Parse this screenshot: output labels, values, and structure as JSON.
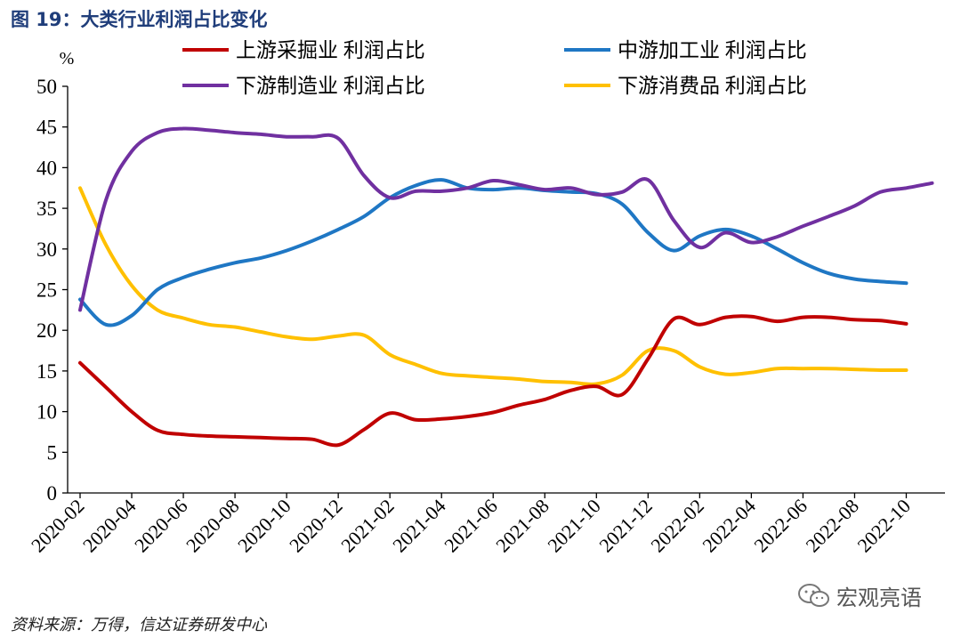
{
  "figure": {
    "title": "图 19：大类行业利润占比变化",
    "source": "资料来源：万得，信达证券研发中心",
    "watermark": "宏观亮语"
  },
  "chart_data": {
    "type": "line",
    "title": "大类行业利润占比变化",
    "ylabel": "%",
    "xlabel": "",
    "ylim": [
      0,
      50
    ],
    "yticks": [
      0,
      5,
      10,
      15,
      20,
      25,
      30,
      35,
      40,
      45,
      50
    ],
    "xlim": [
      0,
      33.5
    ],
    "xticks": [
      {
        "label": "2020-02",
        "x": 0
      },
      {
        "label": "2020-04",
        "x": 2
      },
      {
        "label": "2020-06",
        "x": 4
      },
      {
        "label": "2020-08",
        "x": 6
      },
      {
        "label": "2020-10",
        "x": 8
      },
      {
        "label": "2020-12",
        "x": 10
      },
      {
        "label": "2021-02",
        "x": 12
      },
      {
        "label": "2021-04",
        "x": 14
      },
      {
        "label": "2021-06",
        "x": 16
      },
      {
        "label": "2021-08",
        "x": 18
      },
      {
        "label": "2021-10",
        "x": 20
      },
      {
        "label": "2021-12",
        "x": 22
      },
      {
        "label": "2022-02",
        "x": 24
      },
      {
        "label": "2022-04",
        "x": 26
      },
      {
        "label": "2022-06",
        "x": 28
      },
      {
        "label": "2022-08",
        "x": 30
      },
      {
        "label": "2022-10",
        "x": 32
      }
    ],
    "series": [
      {
        "name": "上游采掘业 利润占比",
        "color": "#c00000",
        "points": [
          [
            0,
            16
          ],
          [
            1,
            13
          ],
          [
            2,
            10
          ],
          [
            3,
            7.7
          ],
          [
            4,
            7.2
          ],
          [
            5,
            7.0
          ],
          [
            6,
            6.9
          ],
          [
            7,
            6.8
          ],
          [
            8,
            6.7
          ],
          [
            9,
            6.6
          ],
          [
            10,
            5.9
          ],
          [
            11,
            7.8
          ],
          [
            12,
            9.8
          ],
          [
            13,
            9.0
          ],
          [
            14,
            9.1
          ],
          [
            15,
            9.4
          ],
          [
            16,
            9.9
          ],
          [
            17,
            10.8
          ],
          [
            18,
            11.5
          ],
          [
            19,
            12.6
          ],
          [
            20,
            13.1
          ],
          [
            21,
            12.1
          ],
          [
            22,
            16.5
          ],
          [
            23,
            21.4
          ],
          [
            24,
            20.7
          ],
          [
            25,
            21.6
          ],
          [
            26,
            21.7
          ],
          [
            27,
            21.1
          ],
          [
            28,
            21.6
          ],
          [
            29,
            21.6
          ],
          [
            30,
            21.3
          ],
          [
            31,
            21.2
          ],
          [
            32,
            20.8
          ]
        ]
      },
      {
        "name": "中游加工业 利润占比",
        "color": "#1f77c4",
        "points": [
          [
            0,
            23.8
          ],
          [
            1,
            20.7
          ],
          [
            2,
            21.8
          ],
          [
            3,
            25
          ],
          [
            4,
            26.5
          ],
          [
            5,
            27.5
          ],
          [
            6,
            28.3
          ],
          [
            7,
            28.9
          ],
          [
            8,
            29.8
          ],
          [
            9,
            31
          ],
          [
            10,
            32.4
          ],
          [
            11,
            34
          ],
          [
            12,
            36.3
          ],
          [
            13,
            37.8
          ],
          [
            14,
            38.5
          ],
          [
            15,
            37.5
          ],
          [
            16,
            37.3
          ],
          [
            17,
            37.5
          ],
          [
            18,
            37.2
          ],
          [
            19,
            37.0
          ],
          [
            20,
            36.8
          ],
          [
            21,
            35.5
          ],
          [
            22,
            32
          ],
          [
            23,
            29.8
          ],
          [
            24,
            31.6
          ],
          [
            25,
            32.4
          ],
          [
            26,
            31.6
          ],
          [
            27,
            30
          ],
          [
            28,
            28.3
          ],
          [
            29,
            27
          ],
          [
            30,
            26.3
          ],
          [
            31,
            26
          ],
          [
            32,
            25.8
          ]
        ]
      },
      {
        "name": "下游制造业 利润占比",
        "color": "#7030a0",
        "points": [
          [
            0,
            22.5
          ],
          [
            1,
            36
          ],
          [
            2,
            42
          ],
          [
            3,
            44.3
          ],
          [
            4,
            44.8
          ],
          [
            5,
            44.6
          ],
          [
            6,
            44.3
          ],
          [
            7,
            44.1
          ],
          [
            8,
            43.8
          ],
          [
            9,
            43.8
          ],
          [
            10,
            43.6
          ],
          [
            11,
            39
          ],
          [
            12,
            36.3
          ],
          [
            13,
            37.1
          ],
          [
            14,
            37.1
          ],
          [
            15,
            37.5
          ],
          [
            16,
            38.4
          ],
          [
            17,
            37.9
          ],
          [
            18,
            37.3
          ],
          [
            19,
            37.5
          ],
          [
            20,
            36.7
          ],
          [
            21,
            37.0
          ],
          [
            22,
            38.5
          ],
          [
            23,
            33.5
          ],
          [
            24,
            30.2
          ],
          [
            25,
            32
          ],
          [
            26,
            30.8
          ],
          [
            27,
            31.5
          ],
          [
            28,
            32.8
          ],
          [
            29,
            34
          ],
          [
            30,
            35.3
          ],
          [
            31,
            37
          ],
          [
            32,
            37.5
          ],
          [
            33,
            38.1
          ]
        ]
      },
      {
        "name": "下游消费品 利润占比",
        "color": "#ffc000",
        "points": [
          [
            0,
            37.5
          ],
          [
            1,
            30.5
          ],
          [
            2,
            25.5
          ],
          [
            3,
            22.5
          ],
          [
            4,
            21.5
          ],
          [
            5,
            20.7
          ],
          [
            6,
            20.4
          ],
          [
            7,
            19.8
          ],
          [
            8,
            19.2
          ],
          [
            9,
            18.9
          ],
          [
            10,
            19.3
          ],
          [
            11,
            19.4
          ],
          [
            12,
            17
          ],
          [
            13,
            15.8
          ],
          [
            14,
            14.7
          ],
          [
            15,
            14.4
          ],
          [
            16,
            14.2
          ],
          [
            17,
            14.0
          ],
          [
            18,
            13.7
          ],
          [
            19,
            13.6
          ],
          [
            20,
            13.4
          ],
          [
            21,
            14.5
          ],
          [
            22,
            17.5
          ],
          [
            23,
            17.5
          ],
          [
            24,
            15.5
          ],
          [
            25,
            14.6
          ],
          [
            26,
            14.8
          ],
          [
            27,
            15.3
          ],
          [
            28,
            15.3
          ],
          [
            29,
            15.3
          ],
          [
            30,
            15.2
          ],
          [
            31,
            15.1
          ],
          [
            32,
            15.1
          ]
        ]
      }
    ],
    "legend": "top, two columns"
  }
}
